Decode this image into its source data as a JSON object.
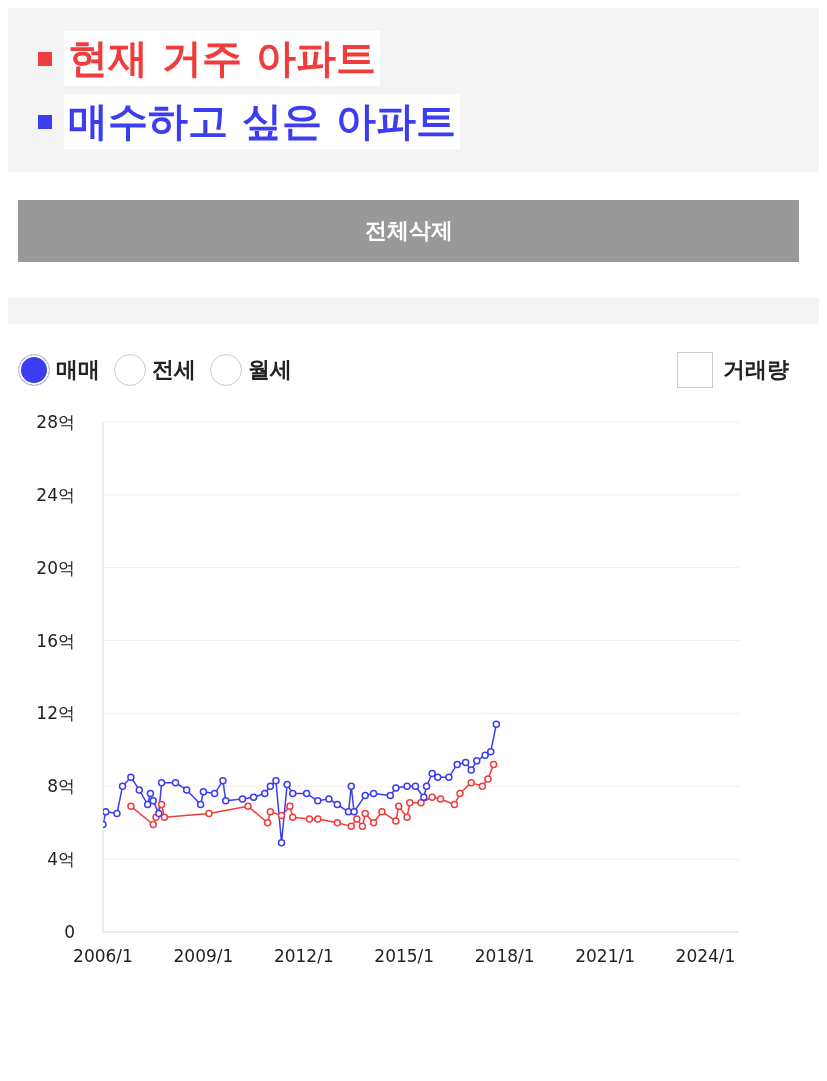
{
  "chart_data": {
    "type": "line",
    "legend": "top left",
    "marker": "circle",
    "grid": "y",
    "annotations": [
      "전체삭제",
      "매매",
      "전세",
      "월세",
      "거래량"
    ],
    "xlim": [
      "2006-01",
      "2025-01"
    ],
    "xticks": [
      {
        "value": "2006-01",
        "label": "2006/1"
      },
      {
        "value": "2009-01",
        "label": "2009/1"
      },
      {
        "value": "2012-01",
        "label": "2012/1"
      },
      {
        "value": "2015-01",
        "label": "2015/1"
      },
      {
        "value": "2018-01",
        "label": "2018/1"
      },
      {
        "value": "2021-01",
        "label": "2021/1"
      },
      {
        "value": "2024-01",
        "label": "2024/1"
      }
    ],
    "ylim": [
      0,
      28
    ],
    "yticks": [
      0,
      {
        "value": 4,
        "label": "4억"
      },
      {
        "value": 8,
        "label": "8억"
      },
      {
        "value": 12,
        "label": "12억"
      },
      {
        "value": 16,
        "label": "16억"
      },
      {
        "value": 20,
        "label": "20억"
      },
      {
        "value": 24,
        "label": "24억"
      },
      {
        "value": 28,
        "label": "28억"
      }
    ],
    "series": [
      {
        "name": "현재 거주 아파트",
        "color": "#f03c3c",
        "x": [
          "2006-11",
          "2007-07",
          "2007-08",
          "2007-10",
          "2007-11",
          "2009-03",
          "2010-05",
          "2010-12",
          "2011-01",
          "2011-05",
          "2011-08",
          "2011-09",
          "2012-03",
          "2012-06",
          "2013-01",
          "2013-06",
          "2013-08",
          "2013-10",
          "2013-11",
          "2014-02",
          "2014-05",
          "2014-10",
          "2014-11",
          "2015-02",
          "2015-03",
          "2015-07",
          "2015-11",
          "2016-02",
          "2016-07",
          "2016-09",
          "2017-01",
          "2017-05",
          "2017-07",
          "2017-09"
        ],
        "values": [
          6.9,
          5.9,
          6.3,
          7.0,
          6.3,
          6.5,
          6.9,
          6.0,
          6.6,
          6.4,
          6.9,
          6.3,
          6.2,
          6.2,
          6.0,
          5.8,
          6.2,
          5.8,
          6.5,
          6.0,
          6.6,
          6.1,
          6.9,
          6.3,
          7.1,
          7.1,
          7.4,
          7.3,
          7.0,
          7.6,
          8.2,
          8.0,
          8.4,
          9.2
        ]
      },
      {
        "name": "매수하고 싶은 아파트",
        "color": "#3c3cf0",
        "x": [
          "2006-01",
          "2006-02",
          "2006-06",
          "2006-08",
          "2006-11",
          "2007-02",
          "2007-05",
          "2007-06",
          "2007-07",
          "2007-09",
          "2007-10",
          "2008-03",
          "2008-07",
          "2008-12",
          "2009-01",
          "2009-05",
          "2009-08",
          "2009-09",
          "2010-03",
          "2010-07",
          "2010-11",
          "2011-01",
          "2011-03",
          "2011-05",
          "2011-07",
          "2011-09",
          "2012-02",
          "2012-06",
          "2012-10",
          "2013-01",
          "2013-05",
          "2013-06",
          "2013-07",
          "2013-11",
          "2014-02",
          "2014-08",
          "2014-10",
          "2015-02",
          "2015-05",
          "2015-08",
          "2015-09",
          "2015-11",
          "2016-01",
          "2016-05",
          "2016-08",
          "2016-11",
          "2017-01",
          "2017-03",
          "2017-06",
          "2017-08",
          "2017-10"
        ],
        "values": [
          5.9,
          6.6,
          6.5,
          8.0,
          8.5,
          7.8,
          7.0,
          7.6,
          7.2,
          6.5,
          8.2,
          8.2,
          7.8,
          7.0,
          7.7,
          7.6,
          8.3,
          7.2,
          7.3,
          7.4,
          7.6,
          8.0,
          8.3,
          4.9,
          8.1,
          7.6,
          7.6,
          7.2,
          7.3,
          7.0,
          6.6,
          8.0,
          6.6,
          7.5,
          7.6,
          7.5,
          7.9,
          8.0,
          8.0,
          7.4,
          8.0,
          8.7,
          8.5,
          8.5,
          9.2,
          9.3,
          8.9,
          9.4,
          9.7,
          9.9,
          11.4
        ]
      }
    ]
  }
}
